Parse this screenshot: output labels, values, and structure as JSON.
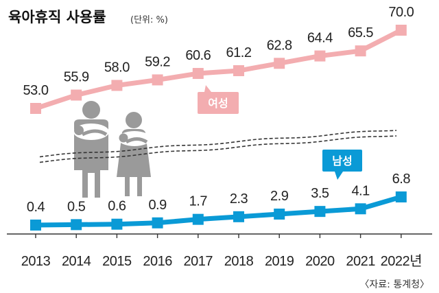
{
  "header": {
    "title": "육아휴직 사용률",
    "unit": "(단위: %)"
  },
  "source": "〈자료: 통계청〉",
  "colors": {
    "female": "#f3adb0",
    "male": "#0a9ad6",
    "figure": "#9a9a9a",
    "axis": "#333333"
  },
  "chart_data": {
    "type": "line",
    "title": "육아휴직 사용률",
    "unit": "(단위: %)",
    "categories": [
      "2013",
      "2014",
      "2015",
      "2016",
      "2017",
      "2018",
      "2019",
      "2020",
      "2021",
      "2022년"
    ],
    "series": [
      {
        "name": "여성",
        "values": [
          53.0,
          55.9,
          58.0,
          59.2,
          60.6,
          61.2,
          62.8,
          64.4,
          65.5,
          70.0
        ],
        "labels": [
          "53.0",
          "55.9",
          "58.0",
          "59.2",
          "60.6",
          "61.2",
          "62.8",
          "64.4",
          "65.5",
          "70.0"
        ]
      },
      {
        "name": "남성",
        "values": [
          0.4,
          0.5,
          0.6,
          0.9,
          1.7,
          2.3,
          2.9,
          3.5,
          4.1,
          6.8
        ],
        "labels": [
          "0.4",
          "0.5",
          "0.6",
          "0.9",
          "1.7",
          "2.3",
          "2.9",
          "3.5",
          "4.1",
          "6.8"
        ]
      }
    ],
    "axis_break": true,
    "grid": false,
    "legend": "inline tags"
  }
}
